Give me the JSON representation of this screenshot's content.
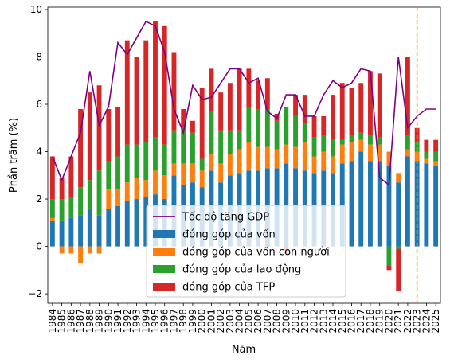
{
  "chart_data": {
    "type": "bar",
    "xlabel": "Năm",
    "ylabel": "Phần trăm (%)",
    "ylim": [
      -2.4,
      10.1
    ],
    "yticks": [
      -2,
      0,
      2,
      4,
      6,
      8,
      10
    ],
    "categories": [
      "1984",
      "1985",
      "1986",
      "1987",
      "1988",
      "1989",
      "1990",
      "1991",
      "1992",
      "1993",
      "1994",
      "1995",
      "1996",
      "1997",
      "1998",
      "1999",
      "2000",
      "2001",
      "2002",
      "2003",
      "2004",
      "2005",
      "2006",
      "2007",
      "2008",
      "2009",
      "2010",
      "2011",
      "2012",
      "2013",
      "2014",
      "2015",
      "2016",
      "2017",
      "2018",
      "2019",
      "2020",
      "2021",
      "2022",
      "2023",
      "2024",
      "2025"
    ],
    "legend_position": "lower-center",
    "forecast_line": {
      "x": "2023",
      "color": "#ff9f00"
    },
    "series": [
      {
        "name": "đóng góp của vốn",
        "kind": "bar",
        "color": "#1f77b4",
        "values": [
          1.1,
          1.1,
          1.2,
          1.3,
          1.6,
          1.3,
          1.6,
          1.7,
          1.9,
          2.0,
          2.1,
          2.2,
          2.0,
          3.0,
          2.6,
          2.7,
          2.5,
          3.2,
          2.7,
          3.0,
          3.1,
          3.2,
          3.2,
          3.3,
          3.3,
          3.5,
          3.3,
          3.2,
          3.1,
          3.2,
          3.1,
          3.5,
          3.6,
          4.0,
          3.6,
          3.6,
          3.4,
          2.7,
          3.8,
          3.6,
          3.5,
          3.4
        ]
      },
      {
        "name": "đóng góp của vốn con người",
        "kind": "bar",
        "color": "#ff7f0e",
        "values": [
          0.1,
          -0.3,
          -0.3,
          -0.7,
          -0.3,
          -0.3,
          0.8,
          0.7,
          0.8,
          0.9,
          0.7,
          1.0,
          1.0,
          0.5,
          0.9,
          0.8,
          0.7,
          0.7,
          0.8,
          0.9,
          1.0,
          1.2,
          1.0,
          0.9,
          0.8,
          0.8,
          0.9,
          1.2,
          0.7,
          0.8,
          0.7,
          0.8,
          0.8,
          0.5,
          0.7,
          0.7,
          0.6,
          0.4,
          0.3,
          0.4,
          0.2,
          0.2
        ]
      },
      {
        "name": "đóng góp của lao động",
        "kind": "bar",
        "color": "#2ca02c",
        "values": [
          0.8,
          0.9,
          0.9,
          1.2,
          1.2,
          1.9,
          1.2,
          1.4,
          1.6,
          1.4,
          1.6,
          1.4,
          1.3,
          1.4,
          1.5,
          1.3,
          0.5,
          1.8,
          1.4,
          1.0,
          0.8,
          1.5,
          1.6,
          1.6,
          1.2,
          1.6,
          1.3,
          0.8,
          0.8,
          0.7,
          0.7,
          0.2,
          0.3,
          0.3,
          0.4,
          0.3,
          -0.8,
          -0.1,
          0.6,
          0.4,
          0.3,
          0.4
        ]
      },
      {
        "name": "đóng góp của TFP",
        "kind": "bar",
        "color": "#d62728",
        "values": [
          1.8,
          0.9,
          1.7,
          3.3,
          3.7,
          3.6,
          2.2,
          2.1,
          4.4,
          3.7,
          4.3,
          4.9,
          5.0,
          3.3,
          0.8,
          0.5,
          3.0,
          1.8,
          1.6,
          2.0,
          2.6,
          1.6,
          1.2,
          1.3,
          0.3,
          -0.3,
          0.9,
          1.2,
          0.9,
          0.8,
          1.9,
          2.4,
          2.0,
          2.1,
          2.7,
          2.7,
          -0.2,
          -1.8,
          3.3,
          0.6,
          0.5,
          0.5
        ]
      },
      {
        "name": "Tốc độ tăng GDP",
        "kind": "line",
        "color": "#800080",
        "values": [
          3.8,
          2.8,
          3.8,
          4.8,
          7.4,
          5.1,
          5.9,
          8.6,
          8.1,
          8.8,
          9.5,
          9.3,
          8.2,
          5.8,
          4.8,
          6.8,
          6.2,
          6.3,
          6.9,
          7.5,
          7.5,
          6.9,
          7.1,
          5.7,
          5.4,
          6.4,
          6.4,
          5.5,
          5.5,
          6.4,
          7.0,
          6.7,
          6.9,
          7.5,
          7.4,
          2.9,
          2.6,
          8.0,
          5.0,
          5.5,
          5.8,
          5.8
        ]
      }
    ]
  }
}
